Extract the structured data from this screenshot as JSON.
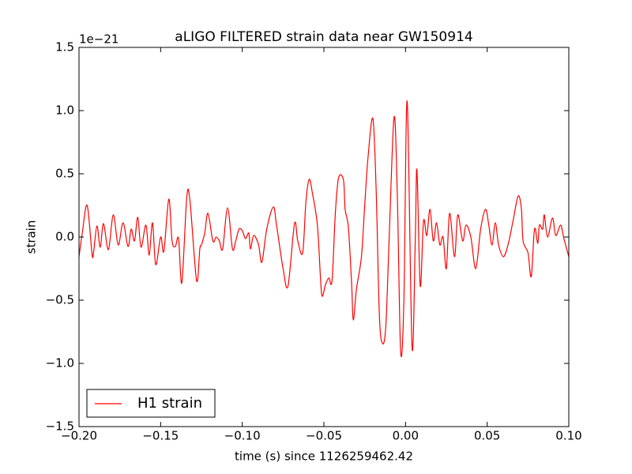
{
  "chart_data": {
    "type": "line",
    "title": "aLIGO FILTERED strain data near GW150914",
    "xlabel": "time (s) since 1126259462.42",
    "ylabel": "strain",
    "y_offset_label": "1e−21",
    "legend": "lower left",
    "xlim": [
      -0.2,
      0.1
    ],
    "ylim": [
      -1.5,
      1.5
    ],
    "xticks": [
      {
        "value": -0.2,
        "label": "−0.20"
      },
      {
        "value": -0.15,
        "label": "−0.15"
      },
      {
        "value": -0.1,
        "label": "−0.10"
      },
      {
        "value": -0.05,
        "label": "−0.05"
      },
      {
        "value": 0,
        "label": "0.00"
      },
      {
        "value": 0.05,
        "label": "0.05"
      },
      {
        "value": 0.1,
        "label": "0.10"
      }
    ],
    "yticks": [
      {
        "value": -1.5,
        "label": "−1.5"
      },
      {
        "value": -1,
        "label": "−1.0"
      },
      {
        "value": -0.5,
        "label": "−0.5"
      },
      {
        "value": 0,
        "label": "0.0"
      },
      0.5,
      {
        "value": 1,
        "label": "1.0"
      },
      1.5
    ],
    "x": [
      -0.2,
      -0.198,
      -0.195,
      -0.192,
      -0.191,
      -0.189,
      -0.187,
      -0.185,
      -0.182,
      -0.179,
      -0.176,
      -0.173,
      -0.17,
      -0.168,
      -0.166,
      -0.164,
      -0.162,
      -0.159,
      -0.157,
      -0.155,
      -0.153,
      -0.15,
      -0.148,
      -0.145,
      -0.143,
      -0.141,
      -0.139,
      -0.137,
      -0.134,
      -0.132,
      -0.128,
      -0.126,
      -0.125,
      -0.123,
      -0.121,
      -0.118,
      -0.116,
      -0.114,
      -0.112,
      -0.109,
      -0.106,
      -0.104,
      -0.102,
      -0.1,
      -0.098,
      -0.096,
      -0.095,
      -0.093,
      -0.09,
      -0.088,
      -0.085,
      -0.081,
      -0.079,
      -0.075,
      -0.072,
      -0.068,
      -0.066,
      -0.063,
      -0.061,
      -0.059,
      -0.057,
      -0.054,
      -0.052,
      -0.051,
      -0.049,
      -0.047,
      -0.045,
      -0.043,
      -0.041,
      -0.038,
      -0.037,
      -0.035,
      -0.033,
      -0.032,
      -0.03,
      -0.027,
      -0.025,
      -0.023,
      -0.02,
      -0.018,
      -0.016,
      -0.014,
      -0.012,
      -0.01,
      -0.007,
      -0.005,
      -0.003,
      -0.001,
      0.001,
      0.004,
      0.006,
      0.007,
      0.009,
      0.011,
      0.013,
      0.015,
      0.017,
      0.019,
      0.021,
      0.023,
      0.025,
      0.027,
      0.03,
      0.032,
      0.035,
      0.037,
      0.04,
      0.043,
      0.046,
      0.049,
      0.051,
      0.053,
      0.055,
      0.057,
      0.06,
      0.063,
      0.066,
      0.069,
      0.071,
      0.072,
      0.075,
      0.077,
      0.079,
      0.081,
      0.082,
      0.084,
      0.085,
      0.087,
      0.09,
      0.092,
      0.095,
      0.097,
      0.1
    ],
    "series": [
      {
        "name": "H1 strain",
        "color": "#ff0000",
        "values": [
          -0.156,
          0.031,
          0.25,
          -0.1375,
          -0.1125,
          0.0875,
          -0.081,
          0.106,
          -0.1,
          0.175,
          -0.0625,
          0.1125,
          -0.075,
          0.0625,
          -0.031,
          0.156,
          -0.081,
          0.094,
          -0.144,
          0.1125,
          -0.219,
          0,
          -0.1125,
          0.3,
          -0.031,
          -0.075,
          -0.0125,
          -0.3625,
          0.3125,
          0.281,
          -0.344,
          -0.094,
          -0.0625,
          0.031,
          0.1875,
          -0.031,
          0,
          -0.031,
          -0.094,
          0.231,
          -0.094,
          -0.031,
          0.0625,
          0.05,
          -0.0125,
          0.031,
          -0.094,
          0.0125,
          -0.0625,
          -0.2,
          0.0625,
          0.2375,
          0.094,
          -0.25,
          -0.3875,
          0.106,
          -0.031,
          -0.125,
          0.281,
          0.456,
          0.344,
          0.094,
          -0.344,
          -0.469,
          -0.375,
          -0.325,
          -0.344,
          0.1875,
          0.469,
          0.45,
          0.219,
          0.075,
          -0.375,
          -0.656,
          -0.406,
          -0.156,
          0.25,
          0.625,
          0.9375,
          0.375,
          -0.625,
          -0.844,
          -0.6875,
          0,
          0.95,
          0.3125,
          -0.906,
          -0.5,
          1.075,
          -0.875,
          0,
          0.531,
          -0.3875,
          0.125,
          0.0125,
          0.219,
          -0.031,
          0.1125,
          -0.0625,
          0,
          -0.25,
          0.1875,
          -0.156,
          0.175,
          -0.031,
          0.094,
          0,
          -0.25,
          0.0625,
          0.219,
          0.094,
          -0.0625,
          0.1125,
          -0.0625,
          -0.156,
          -0.05,
          0.1375,
          0.325,
          0.219,
          -0.031,
          -0.125,
          -0.3125,
          0.0625,
          -0.05,
          0.094,
          0.0625,
          0.175,
          0,
          0.15,
          0.0125,
          0.094,
          -0.0125,
          -0.156
        ]
      }
    ]
  }
}
